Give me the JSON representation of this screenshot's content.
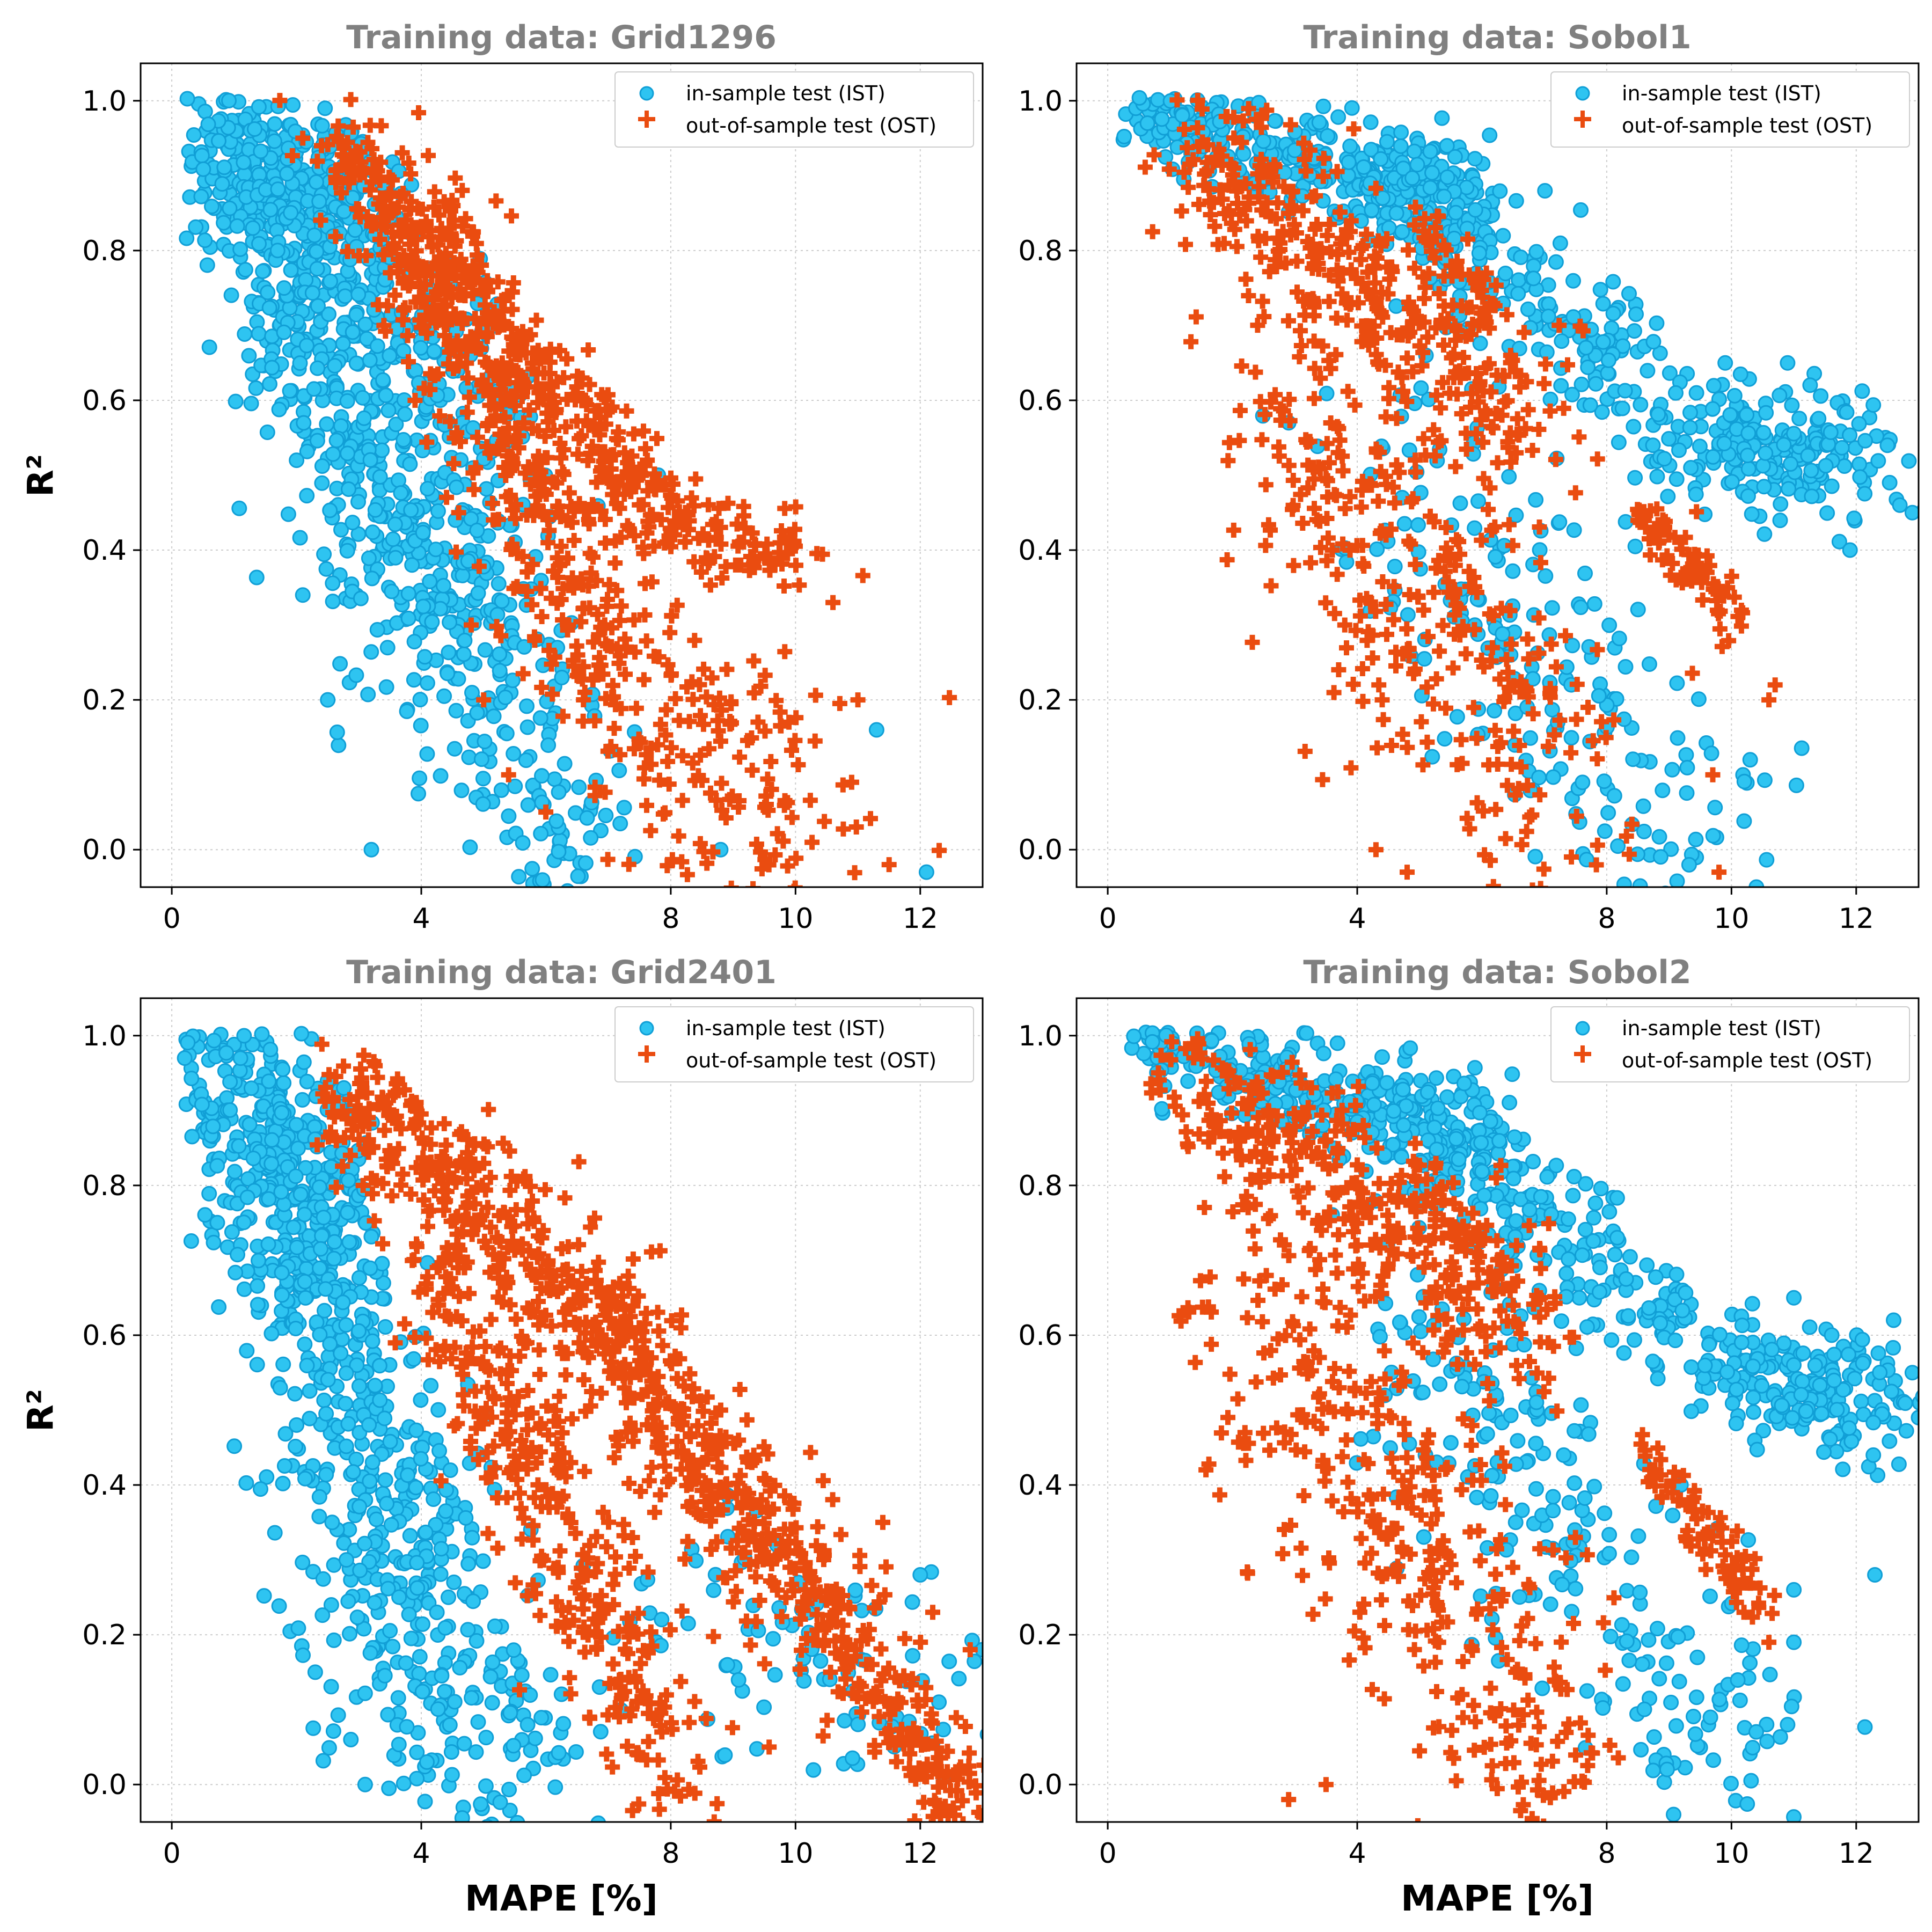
{
  "figure": {
    "xlabel": "MAPE [%]",
    "ylabel": "R²",
    "legend_placement": "upper-right",
    "grid": true,
    "colors": {
      "ist_face": "#2ec4f1",
      "ist_edge": "#119fd6",
      "ost": "#ea4c10",
      "title": "#808080"
    }
  },
  "chart_data": [
    {
      "type": "scatter",
      "title": "Training data: Grid1296",
      "xticks": [
        "0",
        "4",
        "8",
        "10",
        "12"
      ],
      "yticks": [
        "0.0",
        "0.2",
        "0.4",
        "0.6",
        "0.8",
        "1.0"
      ],
      "xlim": [
        -0.5,
        13
      ],
      "ylim": [
        -0.05,
        1.05
      ],
      "series": [
        {
          "name": "in-sample test (IST)",
          "marker": "circle",
          "clusters": [
            {
              "x0": 0.3,
              "y0": 1.0,
              "x1": 3.0,
              "y1": 0.8,
              "wx": 0.35,
              "wy": 0.07,
              "n": 320
            },
            {
              "x0": 1.0,
              "y0": 0.85,
              "x1": 4.5,
              "y1": 0.3,
              "wx": 0.5,
              "wy": 0.08,
              "n": 380
            },
            {
              "x0": 3.2,
              "y0": 0.6,
              "x1": 6.5,
              "y1": -0.03,
              "wx": 0.7,
              "wy": 0.12,
              "n": 300
            },
            {
              "x0": 2.0,
              "y0": 0.9,
              "x1": 5.5,
              "y1": 0.55,
              "wx": 0.45,
              "wy": 0.06,
              "n": 160
            }
          ],
          "points": [
            [
              2.1,
              0.34
            ],
            [
              3.2,
              0.0
            ],
            [
              2.5,
              0.2
            ],
            [
              1.8,
              0.75
            ],
            [
              12.1,
              -0.03
            ],
            [
              11.3,
              0.16
            ],
            [
              7.8,
              0.5
            ],
            [
              8.8,
              0.0
            ],
            [
              2.0,
              0.52
            ],
            [
              1.3,
              0.83
            ]
          ]
        },
        {
          "name": "out-of-sample test (OST)",
          "marker": "plus",
          "clusters": [
            {
              "x0": 2.6,
              "y0": 0.94,
              "x1": 7.8,
              "y1": 0.45,
              "wx": 0.35,
              "wy": 0.04,
              "n": 380
            },
            {
              "x0": 4.0,
              "y0": 0.8,
              "x1": 6.8,
              "y1": 0.3,
              "wx": 0.4,
              "wy": 0.07,
              "n": 280
            },
            {
              "x0": 7.6,
              "y0": 0.45,
              "x1": 10.2,
              "y1": 0.38,
              "wx": 0.3,
              "wy": 0.03,
              "n": 90
            },
            {
              "x0": 6.5,
              "y0": 0.3,
              "x1": 10.5,
              "y1": -0.03,
              "wx": 0.9,
              "wy": 0.09,
              "n": 220
            }
          ],
          "points": [
            [
              2.1,
              0.95
            ],
            [
              2.4,
              0.94
            ],
            [
              3.4,
              0.7
            ],
            [
              3.9,
              0.6
            ],
            [
              4.6,
              0.45
            ],
            [
              4.8,
              0.3
            ],
            [
              5.0,
              0.2
            ],
            [
              5.4,
              0.1
            ],
            [
              11.0,
              0.2
            ],
            [
              10.6,
              0.33
            ],
            [
              11.5,
              -0.02
            ],
            [
              10.9,
              0.09
            ]
          ]
        }
      ]
    },
    {
      "type": "scatter",
      "title": "Training data: Sobol1",
      "xticks": [
        "0",
        "4",
        "8",
        "10",
        "12"
      ],
      "yticks": [
        "0.0",
        "0.2",
        "0.4",
        "0.6",
        "0.8",
        "1.0"
      ],
      "xlim": [
        -0.5,
        13
      ],
      "ylim": [
        -0.05,
        1.05
      ],
      "series": [
        {
          "name": "in-sample test (IST)",
          "marker": "circle",
          "clusters": [
            {
              "x0": 0.3,
              "y0": 1.0,
              "x1": 6.0,
              "y1": 0.85,
              "wx": 0.3,
              "wy": 0.03,
              "n": 300
            },
            {
              "x0": 4.0,
              "y0": 0.92,
              "x1": 8.5,
              "y1": 0.62,
              "wx": 0.4,
              "wy": 0.05,
              "n": 220
            },
            {
              "x0": 9.0,
              "y0": 0.55,
              "x1": 12.0,
              "y1": 0.52,
              "wx": 0.6,
              "wy": 0.04,
              "n": 220
            },
            {
              "x0": 4.5,
              "y0": 0.5,
              "x1": 10.0,
              "y1": -0.03,
              "wx": 0.9,
              "wy": 0.1,
              "n": 220
            },
            {
              "x0": 4.3,
              "y0": 0.92,
              "x1": 5.8,
              "y1": 0.88,
              "wx": 0.3,
              "wy": 0.02,
              "n": 60
            }
          ],
          "points": [
            [
              2.9,
              0.57
            ],
            [
              12.7,
              0.46
            ],
            [
              12.9,
              0.45
            ],
            [
              11.9,
              0.4
            ],
            [
              10.3,
              0.12
            ],
            [
              10.4,
              -0.05
            ],
            [
              9.9,
              0.65
            ],
            [
              10.9,
              0.65
            ],
            [
              12.5,
              0.54
            ]
          ]
        },
        {
          "name": "out-of-sample test (OST)",
          "marker": "plus",
          "clusters": [
            {
              "x0": 1.3,
              "y0": 0.95,
              "x1": 7.0,
              "y1": 0.55,
              "wx": 0.4,
              "wy": 0.06,
              "n": 360
            },
            {
              "x0": 2.5,
              "y0": 0.6,
              "x1": 7.5,
              "y1": 0.05,
              "wx": 0.7,
              "wy": 0.12,
              "n": 320
            },
            {
              "x0": 8.5,
              "y0": 0.46,
              "x1": 10.2,
              "y1": 0.3,
              "wx": 0.12,
              "wy": 0.02,
              "n": 80
            },
            {
              "x0": 5.0,
              "y0": 0.84,
              "x1": 6.3,
              "y1": 0.7,
              "wx": 0.12,
              "wy": 0.015,
              "n": 40
            }
          ],
          "points": [
            [
              4.3,
              0.0
            ],
            [
              4.8,
              -0.03
            ],
            [
              9.7,
              0.1
            ],
            [
              10.6,
              0.2
            ],
            [
              10.7,
              0.22
            ],
            [
              3.6,
              0.4
            ],
            [
              3.8,
              0.3
            ],
            [
              4.4,
              0.2
            ],
            [
              9.8,
              -0.03
            ]
          ]
        }
      ]
    },
    {
      "type": "scatter",
      "title": "Training data: Grid2401",
      "xticks": [
        "0",
        "4",
        "8",
        "10",
        "12"
      ],
      "yticks": [
        "0.0",
        "0.2",
        "0.4",
        "0.6",
        "0.8",
        "1.0"
      ],
      "xlim": [
        -0.5,
        13
      ],
      "ylim": [
        -0.05,
        1.05
      ],
      "series": [
        {
          "name": "in-sample test (IST)",
          "marker": "circle",
          "clusters": [
            {
              "x0": 0.4,
              "y0": 0.98,
              "x1": 3.0,
              "y1": 0.7,
              "wx": 0.35,
              "wy": 0.09,
              "n": 420
            },
            {
              "x0": 1.5,
              "y0": 0.75,
              "x1": 4.5,
              "y1": 0.25,
              "wx": 0.5,
              "wy": 0.1,
              "n": 320
            },
            {
              "x0": 2.5,
              "y0": 0.3,
              "x1": 6.0,
              "y1": -0.03,
              "wx": 0.7,
              "wy": 0.1,
              "n": 220
            },
            {
              "x0": 7.5,
              "y0": 0.25,
              "x1": 12.5,
              "y1": 0.1,
              "wx": 0.8,
              "wy": 0.07,
              "n": 90
            }
          ],
          "points": [
            [
              2.0,
              0.48
            ],
            [
              2.3,
              0.15
            ],
            [
              2.8,
              0.3
            ],
            [
              3.1,
              0.0
            ],
            [
              13.0,
              0.18
            ],
            [
              12.3,
              0.11
            ],
            [
              12.0,
              0.28
            ]
          ]
        },
        {
          "name": "out-of-sample test (OST)",
          "marker": "plus",
          "clusters": [
            {
              "x0": 2.7,
              "y0": 0.92,
              "x1": 7.5,
              "y1": 0.6,
              "wx": 0.4,
              "wy": 0.05,
              "n": 300
            },
            {
              "x0": 4.0,
              "y0": 0.72,
              "x1": 8.2,
              "y1": -0.03,
              "wx": 0.4,
              "wy": 0.05,
              "n": 300
            },
            {
              "x0": 6.5,
              "y0": 0.66,
              "x1": 12.8,
              "y1": -0.03,
              "wx": 0.3,
              "wy": 0.035,
              "n": 360
            },
            {
              "x0": 5.5,
              "y0": 0.58,
              "x1": 11.0,
              "y1": 0.2,
              "wx": 0.6,
              "wy": 0.08,
              "n": 160
            }
          ],
          "points": [
            [
              12.8,
              0.18
            ],
            [
              12.2,
              0.23
            ],
            [
              8.8,
              0.5
            ],
            [
              9.3,
              0.43
            ],
            [
              11.4,
              0.35
            ],
            [
              10.5,
              0.25
            ]
          ]
        }
      ]
    },
    {
      "type": "scatter",
      "title": "Training data: Sobol2",
      "xticks": [
        "0",
        "4",
        "8",
        "10",
        "12"
      ],
      "yticks": [
        "0.0",
        "0.2",
        "0.4",
        "0.6",
        "0.8",
        "1.0"
      ],
      "xlim": [
        -0.5,
        13
      ],
      "ylim": [
        -0.05,
        1.05
      ],
      "series": [
        {
          "name": "in-sample test (IST)",
          "marker": "circle",
          "clusters": [
            {
              "x0": 0.4,
              "y0": 1.0,
              "x1": 6.5,
              "y1": 0.85,
              "wx": 0.3,
              "wy": 0.03,
              "n": 300
            },
            {
              "x0": 4.5,
              "y0": 0.9,
              "x1": 9.5,
              "y1": 0.6,
              "wx": 0.4,
              "wy": 0.05,
              "n": 240
            },
            {
              "x0": 10.0,
              "y0": 0.55,
              "x1": 12.5,
              "y1": 0.5,
              "wx": 0.6,
              "wy": 0.04,
              "n": 200
            },
            {
              "x0": 5.0,
              "y0": 0.6,
              "x1": 10.5,
              "y1": -0.02,
              "wx": 0.8,
              "wy": 0.1,
              "n": 240
            }
          ],
          "points": [
            [
              11.0,
              0.65
            ],
            [
              12.6,
              0.62
            ],
            [
              12.3,
              0.28
            ],
            [
              11.0,
              0.19
            ],
            [
              11.0,
              0.26
            ],
            [
              10.9,
              0.08
            ],
            [
              13.0,
              0.49
            ],
            [
              12.9,
              0.55
            ]
          ]
        },
        {
          "name": "out-of-sample test (OST)",
          "marker": "plus",
          "clusters": [
            {
              "x0": 1.3,
              "y0": 0.96,
              "x1": 7.0,
              "y1": 0.6,
              "wx": 0.4,
              "wy": 0.06,
              "n": 340
            },
            {
              "x0": 2.2,
              "y0": 0.7,
              "x1": 7.5,
              "y1": -0.03,
              "wx": 0.7,
              "wy": 0.12,
              "n": 380
            },
            {
              "x0": 8.7,
              "y0": 0.43,
              "x1": 10.4,
              "y1": 0.25,
              "wx": 0.12,
              "wy": 0.02,
              "n": 80
            },
            {
              "x0": 4.8,
              "y0": 0.82,
              "x1": 6.0,
              "y1": 0.72,
              "wx": 0.1,
              "wy": 0.015,
              "n": 30
            }
          ],
          "points": [
            [
              2.2,
              0.47
            ],
            [
              3.5,
              0.0
            ],
            [
              2.9,
              -0.02
            ],
            [
              10.6,
              0.19
            ],
            [
              10.2,
              0.23
            ]
          ]
        }
      ]
    }
  ]
}
